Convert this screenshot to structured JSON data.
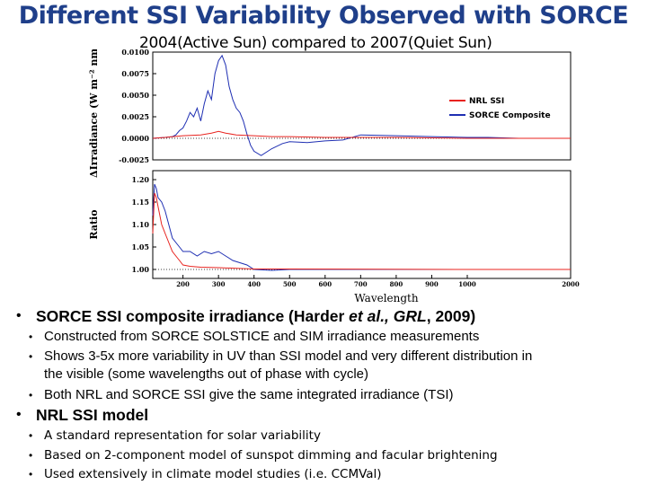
{
  "title": "Different SSI Variability Observed with SORCE",
  "subtitle": "2004(Active Sun)  compared to  2007(Quiet Sun)",
  "bullets": {
    "b1_prefix": "SORCE SSI composite irradiance  (Harder ",
    "b1_italic1": "et al., GRL",
    "b1_suffix": ", 2009)",
    "b1_sub": [
      "Constructed from SORCE SOLSTICE and SIM irradiance measurements",
      "Shows 3-5x more variability in UV than SSI model and very different distribution in",
      "the visible (some wavelengths out of phase with cycle)",
      "Both NRL and SORCE SSI give the same integrated irradiance (TSI)"
    ],
    "b2": "NRL SSI model",
    "b2_sub": [
      "A standard representation for solar variability",
      "Based on 2-component model of sunspot dimming and facular brightening",
      "Used extensively in climate model studies (i.e. CCMVal)"
    ]
  },
  "chart_data": [
    {
      "type": "line",
      "ylabel": "ΔIrradiance (W m⁻² nm⁻¹)",
      "xlim": [
        115,
        2000
      ],
      "ylim": [
        -0.0025,
        0.01
      ],
      "yticks": [
        "0.0100",
        "0.0075",
        "0.0050",
        "0.0025",
        "0.0000",
        "-0.0025"
      ],
      "ytick_values": [
        0.01,
        0.0075,
        0.005,
        0.0025,
        0.0,
        -0.0025
      ],
      "legend": [
        "NRL SSI",
        "SORCE Composite"
      ],
      "legend_position": "right",
      "colors": {
        "NRL SSI": "#e8231f",
        "SORCE Composite": "#1f2fb3"
      },
      "series": [
        {
          "name": "SORCE Composite",
          "x": [
            115,
            150,
            170,
            180,
            190,
            200,
            210,
            220,
            230,
            240,
            250,
            260,
            270,
            280,
            290,
            300,
            310,
            320,
            330,
            340,
            350,
            360,
            370,
            380,
            390,
            400,
            420,
            450,
            480,
            500,
            550,
            600,
            650,
            700,
            800,
            900,
            1000,
            1200,
            1500,
            2000
          ],
          "y": [
            0.0,
            0.0001,
            0.0002,
            0.0004,
            0.0009,
            0.0012,
            0.002,
            0.003,
            0.0025,
            0.0035,
            0.002,
            0.004,
            0.0055,
            0.0045,
            0.0075,
            0.009,
            0.0096,
            0.0085,
            0.006,
            0.0045,
            0.0035,
            0.003,
            0.002,
            0.0005,
            -0.0008,
            -0.0015,
            -0.002,
            -0.0012,
            -0.0006,
            -0.0004,
            -0.0005,
            -0.0003,
            -0.0002,
            0.0004,
            0.0003,
            0.0002,
            0.0001,
            0.0001,
            0.0,
            0.0
          ]
        },
        {
          "name": "NRL SSI",
          "x": [
            115,
            150,
            200,
            250,
            280,
            300,
            320,
            350,
            400,
            450,
            500,
            600,
            800,
            1000,
            1500,
            2000
          ],
          "y": [
            0.0,
            0.0001,
            0.0003,
            0.0004,
            0.0006,
            0.0008,
            0.0006,
            0.0004,
            0.0003,
            0.0002,
            0.0002,
            0.0001,
            0.0001,
            0.0,
            0.0,
            0.0
          ]
        }
      ]
    },
    {
      "type": "line",
      "xlabel": "Wavelength",
      "ylabel": "Ratio",
      "xlim": [
        115,
        2000
      ],
      "ylim": [
        0.98,
        1.22
      ],
      "yticks": [
        "1.20",
        "1.15",
        "1.10",
        "1.05",
        "1.00"
      ],
      "ytick_values": [
        1.2,
        1.15,
        1.1,
        1.05,
        1.0
      ],
      "xticks": [
        "200",
        "300",
        "400",
        "500",
        "600",
        "700",
        "800",
        "900",
        "1000",
        "2000"
      ],
      "xtick_values": [
        200,
        300,
        400,
        500,
        600,
        700,
        800,
        900,
        1000,
        2000
      ],
      "series": [
        {
          "name": "SORCE Composite",
          "x": [
            115,
            120,
            125,
            130,
            140,
            150,
            160,
            170,
            180,
            190,
            200,
            220,
            240,
            260,
            280,
            300,
            320,
            340,
            360,
            380,
            400,
            450,
            500,
            600,
            800,
            1000,
            2000
          ],
          "y": [
            1.12,
            1.19,
            1.18,
            1.16,
            1.15,
            1.13,
            1.1,
            1.07,
            1.06,
            1.05,
            1.04,
            1.04,
            1.03,
            1.04,
            1.035,
            1.04,
            1.03,
            1.02,
            1.015,
            1.01,
            1.0,
            0.998,
            1.0,
            1.0,
            1.0,
            1.0,
            1.0
          ]
        },
        {
          "name": "NRL SSI",
          "x": [
            115,
            120,
            125,
            130,
            140,
            150,
            160,
            170,
            180,
            190,
            200,
            220,
            250,
            300,
            400,
            500,
            1000,
            2000
          ],
          "y": [
            1.08,
            1.17,
            1.16,
            1.14,
            1.1,
            1.08,
            1.06,
            1.04,
            1.03,
            1.02,
            1.01,
            1.007,
            1.005,
            1.004,
            1.001,
            1.001,
            1.0,
            1.0
          ]
        }
      ]
    }
  ]
}
